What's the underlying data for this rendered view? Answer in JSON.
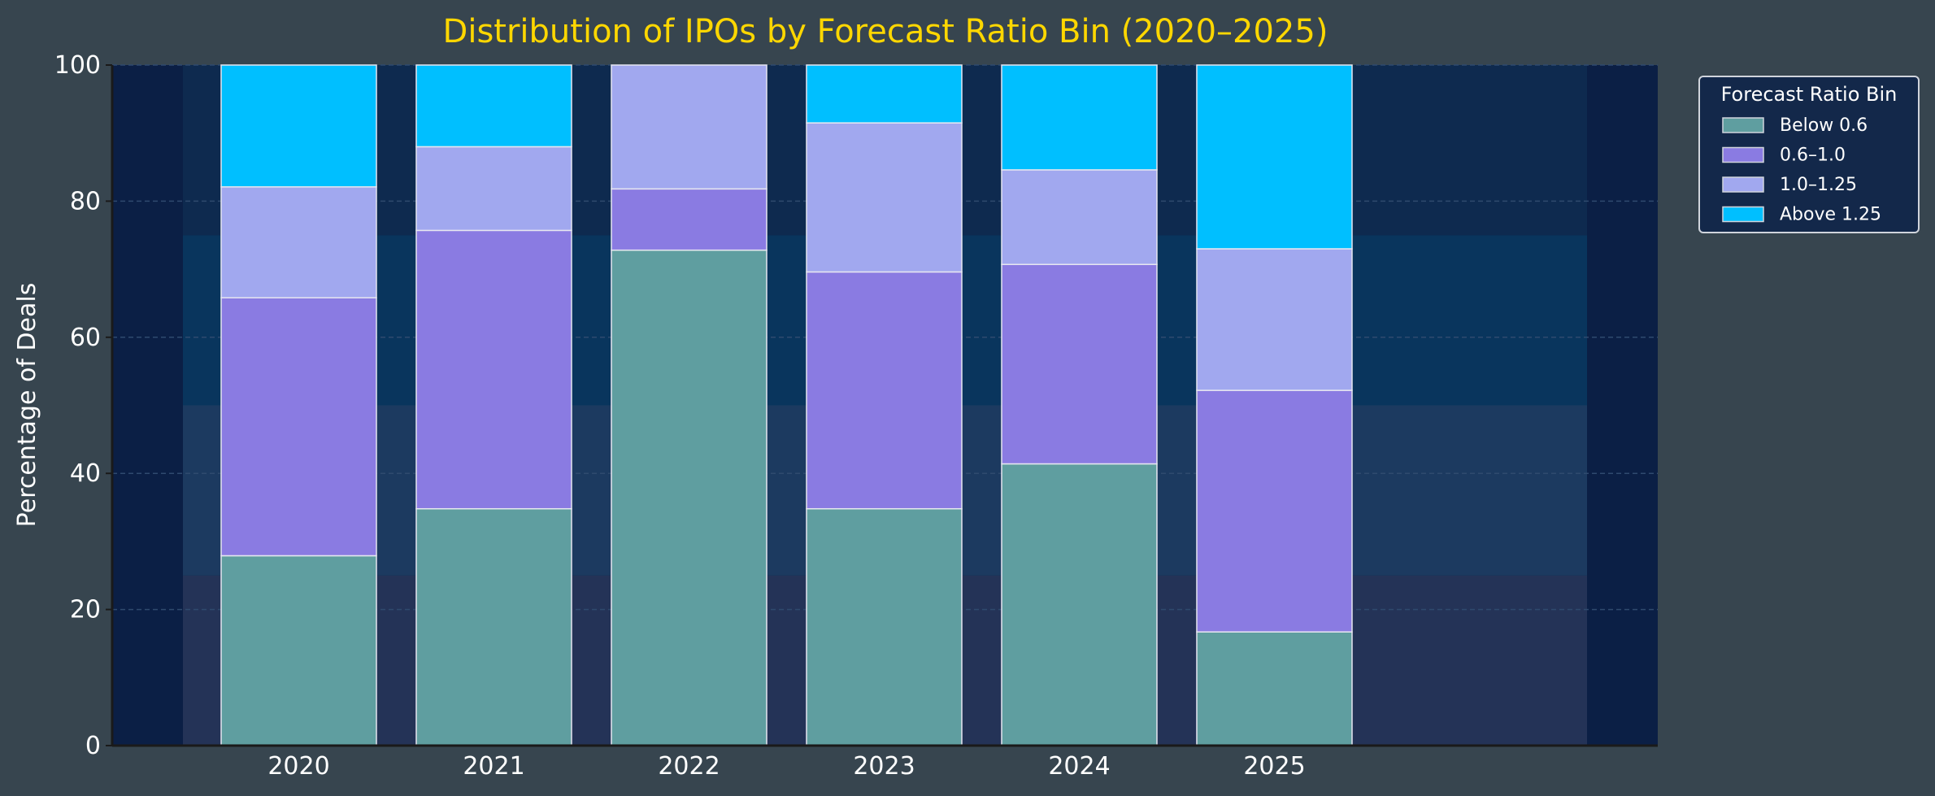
{
  "chart_data": {
    "type": "bar",
    "stacked": true,
    "title": "Distribution of IPOs by Forecast Ratio Bin (2020–2025)",
    "xlabel": "",
    "ylabel": "Percentage of Deals",
    "ylim": [
      0,
      100
    ],
    "yticks": [
      "0",
      "20",
      "40",
      "60",
      "80",
      "100"
    ],
    "grid": true,
    "categories": [
      "2020",
      "2021",
      "2022",
      "2023",
      "2024",
      "2025"
    ],
    "legend": {
      "title": "Forecast Ratio Bin",
      "placement": "outside-top-right"
    },
    "series": [
      {
        "name": "Below 0.6",
        "color": "#5f9ea0",
        "values": [
          27.9,
          34.8,
          72.8,
          34.8,
          41.4,
          16.7
        ]
      },
      {
        "name": "0.6–1.0",
        "color": "#8a7be2",
        "values": [
          37.9,
          40.9,
          9.0,
          34.8,
          29.3,
          35.5
        ]
      },
      {
        "name": "1.0–1.25",
        "color": "#a1a8ef",
        "values": [
          16.3,
          12.3,
          18.2,
          21.9,
          13.9,
          20.8
        ]
      },
      {
        "name": "Above 1.25",
        "color": "#00bfff",
        "values": [
          17.9,
          12.0,
          0.0,
          8.5,
          15.4,
          27.0
        ]
      }
    ],
    "background_bands": [
      {
        "from": 0,
        "to": 25,
        "color": "#243357"
      },
      {
        "from": 25,
        "to": 50,
        "color": "#1c3a60"
      },
      {
        "from": 50,
        "to": 75,
        "color": "#09355d"
      },
      {
        "from": 75,
        "to": 100,
        "color": "#0e2a4f"
      }
    ],
    "colors": {
      "background": "#37454f",
      "plot_background": "#0b1f45",
      "title": "#ffd700",
      "text": "#ffffff"
    }
  }
}
